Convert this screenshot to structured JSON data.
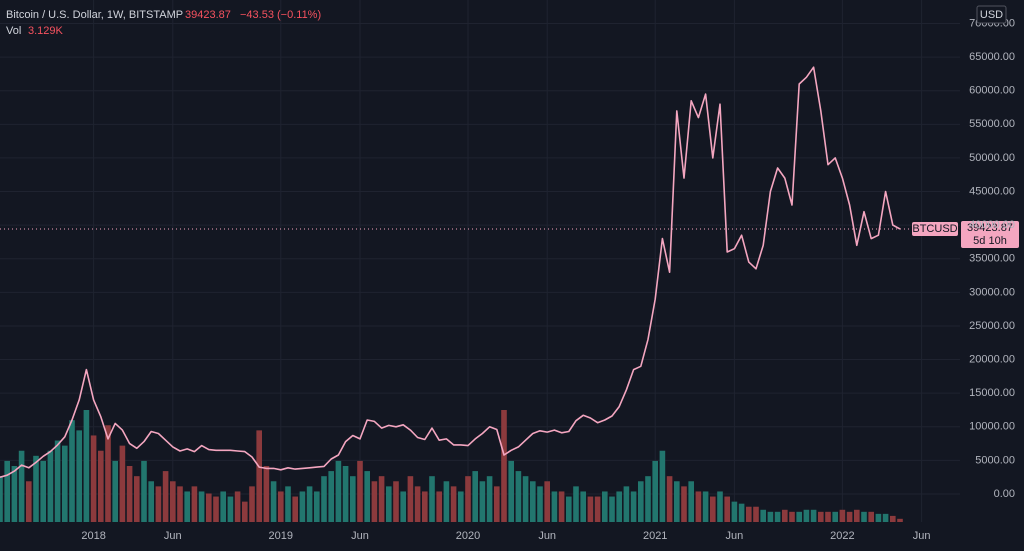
{
  "chart_data": {
    "type": "line",
    "title": "Bitcoin / U.S. Dollar, 1W, BITSTAMP",
    "change": "−43.53 (−0.11%)",
    "countdown": "5d 10h",
    "currency": "USD",
    "grid": true,
    "up_color": "#22766e",
    "down_color": "#8c3a3d",
    "ylim": [
      -4170,
      73500
    ],
    "yticks": [
      {
        "value": 0,
        "label": "0.00"
      },
      {
        "value": 5000,
        "label": "5000.00"
      },
      {
        "value": 10000,
        "label": "10000.00"
      },
      {
        "value": 15000,
        "label": "15000.00"
      },
      {
        "value": 20000,
        "label": "20000.00"
      },
      {
        "value": 25000,
        "label": "25000.00"
      },
      {
        "value": 30000,
        "label": "30000.00"
      },
      {
        "value": 35000,
        "label": "35000.00"
      },
      {
        "value": 40000,
        "label": "40000.00"
      },
      {
        "value": 45000,
        "label": "45000.00"
      },
      {
        "value": 50000,
        "label": "50000.00"
      },
      {
        "value": 55000,
        "label": "55000.00"
      },
      {
        "value": 60000,
        "label": "60000.00"
      },
      {
        "value": 65000,
        "label": "65000.00"
      },
      {
        "value": 70000,
        "label": "70000.00"
      }
    ],
    "categories": [
      null,
      null,
      null,
      null,
      null,
      null,
      null,
      null,
      null,
      null,
      null,
      null,
      null,
      "2018",
      null,
      null,
      null,
      null,
      null,
      null,
      null,
      null,
      null,
      null,
      "Jun",
      null,
      null,
      null,
      null,
      null,
      null,
      null,
      null,
      null,
      null,
      null,
      null,
      null,
      null,
      "2019",
      null,
      null,
      null,
      null,
      null,
      null,
      null,
      null,
      null,
      null,
      "Jun",
      null,
      null,
      null,
      null,
      null,
      null,
      null,
      null,
      null,
      null,
      null,
      null,
      null,
      null,
      "2020",
      null,
      null,
      null,
      null,
      null,
      null,
      null,
      null,
      null,
      null,
      "Jun",
      null,
      null,
      null,
      null,
      null,
      null,
      null,
      null,
      null,
      null,
      null,
      null,
      null,
      null,
      "2021",
      null,
      null,
      null,
      null,
      null,
      null,
      null,
      null,
      null,
      null,
      "Jun",
      null,
      null,
      null,
      null,
      null,
      null,
      null,
      null,
      null,
      null,
      null,
      null,
      null,
      null,
      "2022",
      null,
      null,
      null,
      null,
      null,
      null,
      null,
      null,
      null,
      null,
      "Jun",
      null,
      null,
      null,
      null,
      null
    ],
    "series": [
      {
        "name": "BTCUSD",
        "color": "#f4a6c0",
        "values": [
          2500,
          2800,
          3400,
          4300,
          3900,
          4700,
          5600,
          6300,
          7300,
          8500,
          11000,
          14000,
          18500,
          14000,
          11500,
          8200,
          10500,
          9500,
          7500,
          6800,
          7800,
          9300,
          9000,
          8000,
          7000,
          6400,
          6700,
          6300,
          7200,
          6600,
          6500,
          6500,
          6500,
          6400,
          6300,
          5500,
          4000,
          3800,
          3800,
          3600,
          3900,
          3700,
          3800,
          3900,
          4000,
          4100,
          5200,
          5800,
          7800,
          8700,
          8200,
          11000,
          10800,
          9800,
          10200,
          10000,
          10300,
          9500,
          8400,
          8100,
          9800,
          8000,
          8200,
          7300,
          7300,
          7200,
          8200,
          9000,
          10000,
          9600,
          5800,
          6500,
          7000,
          8000,
          9000,
          9400,
          9200,
          9500,
          9100,
          9300,
          10900,
          11700,
          11300,
          10600,
          11000,
          11600,
          13000,
          15500,
          18500,
          19000,
          23000,
          29000,
          38000,
          33000,
          57000,
          47000,
          58500,
          56000,
          59500,
          50000,
          58000,
          36000,
          36500,
          38500,
          34500,
          33500,
          37000,
          45000,
          48500,
          47000,
          43000,
          61000,
          62000,
          63500,
          57000,
          49000,
          50000,
          47000,
          43000,
          37000,
          42000,
          38000,
          38500,
          45000,
          40000,
          39423.87,
          null,
          null,
          null,
          null,
          null,
          null,
          null,
          null
        ]
      },
      {
        "name": "Vol",
        "values": [
          45,
          60,
          55,
          70,
          40,
          65,
          60,
          70,
          80,
          75,
          100,
          90,
          110,
          85,
          70,
          95,
          60,
          75,
          55,
          45,
          60,
          40,
          35,
          50,
          40,
          35,
          30,
          35,
          30,
          28,
          25,
          30,
          25,
          30,
          20,
          35,
          90,
          55,
          40,
          30,
          35,
          25,
          30,
          35,
          30,
          45,
          50,
          60,
          55,
          45,
          60,
          50,
          40,
          45,
          35,
          40,
          30,
          45,
          35,
          30,
          45,
          30,
          40,
          35,
          30,
          45,
          50,
          40,
          45,
          35,
          110,
          60,
          50,
          45,
          40,
          35,
          40,
          30,
          30,
          25,
          35,
          30,
          25,
          25,
          30,
          25,
          30,
          35,
          30,
          40,
          45,
          60,
          70,
          45,
          40,
          35,
          40,
          30,
          30,
          25,
          30,
          25,
          20,
          18,
          15,
          15,
          12,
          10,
          10,
          12,
          10,
          10,
          12,
          12,
          10,
          10,
          10,
          12,
          10,
          12,
          10,
          10,
          8,
          8,
          6,
          3.129,
          null,
          null,
          null,
          null,
          null,
          null,
          null,
          null
        ],
        "value_labels": [
          null,
          null,
          null,
          null,
          null,
          null,
          null,
          null,
          null,
          null,
          null,
          null,
          null,
          null,
          null,
          null,
          null,
          null,
          null,
          null,
          null,
          null,
          null,
          null,
          null,
          null,
          null,
          null,
          null,
          null,
          null,
          null,
          null,
          null,
          null,
          null,
          null,
          null,
          null,
          null,
          null,
          null,
          null,
          null,
          null,
          null,
          null,
          null,
          null,
          null,
          null,
          null,
          null,
          null,
          null,
          null,
          null,
          null,
          null,
          null,
          null,
          null,
          null,
          null,
          null,
          null,
          null,
          null,
          null,
          null,
          null,
          null,
          null,
          null,
          null,
          null,
          null,
          null,
          null,
          null,
          null,
          null,
          null,
          null,
          null,
          null,
          null,
          null,
          null,
          null,
          null,
          null,
          null,
          null,
          null,
          null,
          null,
          null,
          null,
          null,
          null,
          null,
          null,
          null,
          null,
          null,
          null,
          null,
          null,
          null,
          null,
          null,
          null,
          null,
          null,
          null,
          null,
          null,
          null,
          null,
          null,
          null,
          null,
          null,
          null,
          "3.129K",
          null,
          null,
          null,
          null,
          null,
          null,
          null,
          null
        ]
      }
    ]
  }
}
